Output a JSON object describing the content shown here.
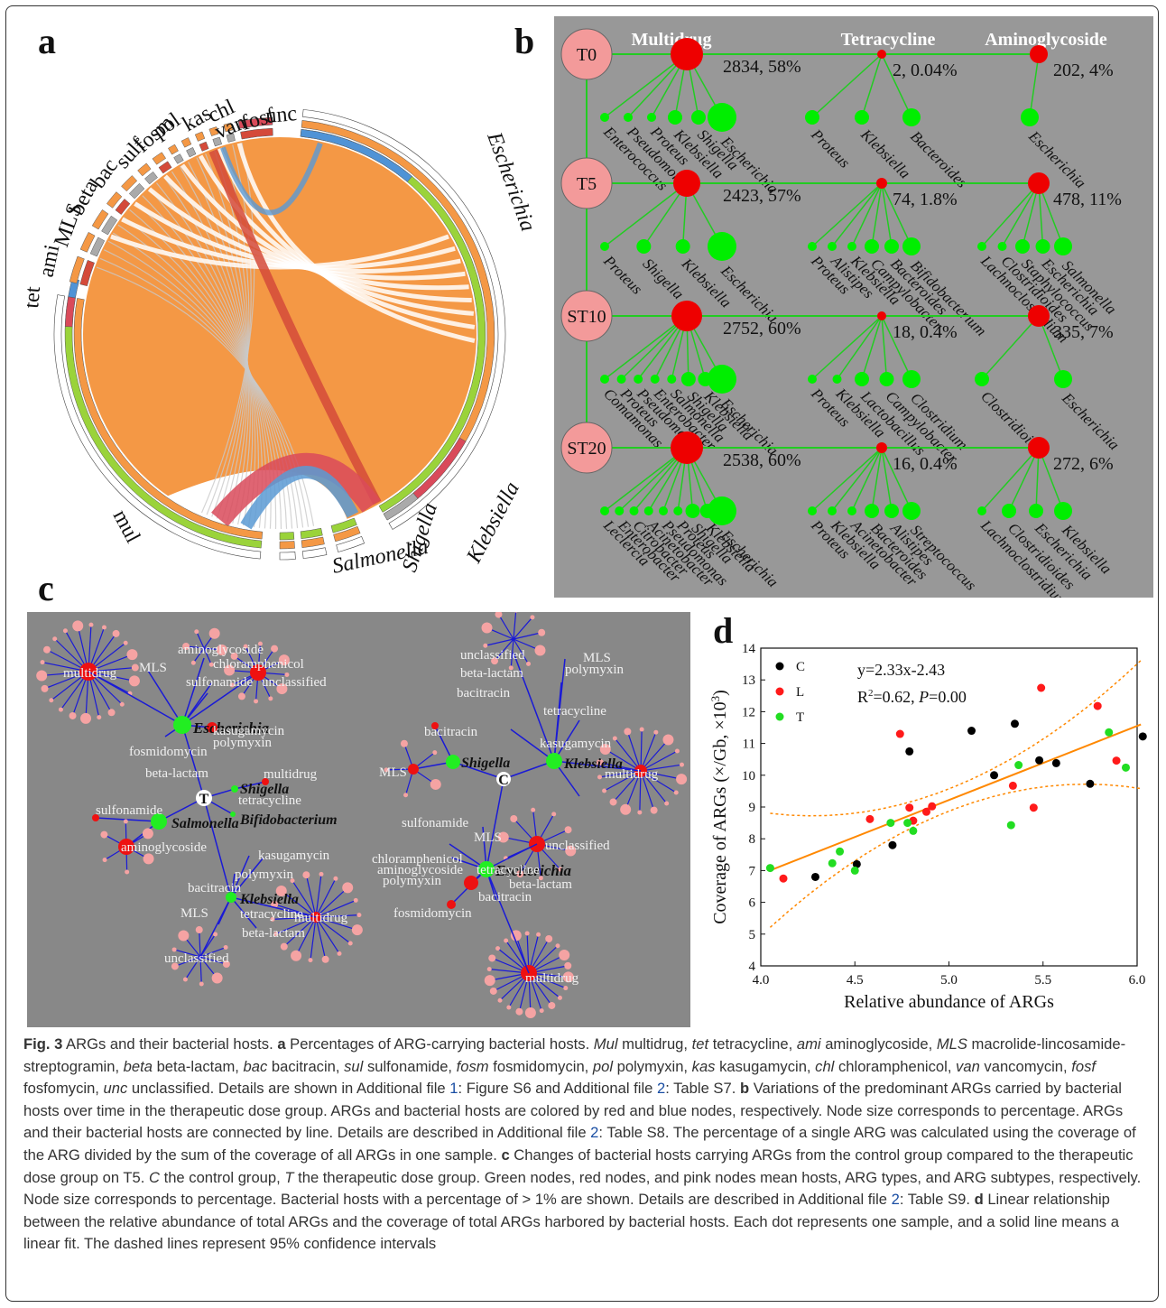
{
  "panels": {
    "a": "a",
    "b": "b",
    "c": "c",
    "d": "d"
  },
  "panel_a": {
    "arg_labels": [
      "tet",
      "ami",
      "MLS",
      "beta",
      "bac",
      "sulf",
      "fosm",
      "pol",
      "kas",
      "chl",
      "van",
      "fosf",
      "unc",
      "mul"
    ],
    "host_labels": [
      "Escherichia",
      "Klebsiella",
      "Shigella",
      "Salmonella"
    ]
  },
  "panel_b": {
    "columns": [
      "Multidrug",
      "Tetracycline",
      "Aminoglycoside"
    ],
    "rows": [
      {
        "time": "T0",
        "multi": "2834, 58%",
        "tet": "2, 0.04%",
        "ami": "202, 4%",
        "multi_hosts": [
          "Enterococcus",
          "Pseudomonas",
          "Proteus",
          "Klebsiella",
          "Shigella",
          "Escherichia"
        ],
        "tet_hosts": [
          "Proteus",
          "Klebsiella",
          "Bacteroides"
        ],
        "ami_hosts": [
          "Escherichia"
        ]
      },
      {
        "time": "T5",
        "multi": "2423, 57%",
        "tet": "74, 1.8%",
        "ami": "478, 11%",
        "multi_hosts": [
          "Proteus",
          "Shigella",
          "Klebsiella",
          "Escherichia"
        ],
        "tet_hosts": [
          "Proteus",
          "Alistipes",
          "Klebsiella",
          "Campylobacter",
          "Bacteroides",
          "Bifidobacterium"
        ],
        "ami_hosts": [
          "Lachnoclostridium",
          "Clostridioides",
          "Staphylococcus",
          "Escherichia",
          "Salmonella"
        ]
      },
      {
        "time": "ST10",
        "multi": "2752, 60%",
        "tet": "18, 0.4%",
        "ami": "335, 7%",
        "multi_hosts": [
          "Comamonas",
          "Proteus",
          "Pseudomonas",
          "Enterobacter",
          "Salmonella",
          "Shigella",
          "Klebsiella",
          "Escherichia"
        ],
        "tet_hosts": [
          "Proteus",
          "Klebsiella",
          "Lactobacillus",
          "Campylobacter",
          "Clostridium"
        ],
        "ami_hosts": [
          "Clostridioides",
          "Escherichia"
        ]
      },
      {
        "time": "ST20",
        "multi": "2538, 60%",
        "tet": "16, 0.4%",
        "ami": "272, 6%",
        "multi_hosts": [
          "Leclercia",
          "Enterobacter",
          "Citrobacter",
          "Acinetobacter",
          "Pseudomonas",
          "Proteus",
          "Shigella",
          "Klebsiella",
          "Escherichia"
        ],
        "tet_hosts": [
          "Proteus",
          "Klebsiella",
          "Acinetobacter",
          "Bacteroides",
          "Alistipes",
          "Streptococcus"
        ],
        "ami_hosts": [
          "Lachnoclostridium",
          "Clostridioides",
          "Escherichia",
          "Klebsiella"
        ]
      }
    ]
  },
  "panel_c": {
    "group_T": "T",
    "group_C": "C",
    "hosts_T": [
      "Escherichia",
      "Shigella",
      "Salmonella",
      "Bifidobacterium",
      "Klebsiella"
    ],
    "hosts_C": [
      "Klebsiella",
      "Shigella",
      "Escherichia"
    ],
    "types": [
      "multidrug",
      "aminoglycoside",
      "MLS",
      "chloramphenicol",
      "sulfonamide",
      "unclassified",
      "fosmidomycin",
      "kasugamycin",
      "polymyxin",
      "beta-lactam",
      "bacitracin",
      "tetracycline"
    ]
  },
  "chart_data": {
    "type": "scatter",
    "title": "",
    "xlabel": "Relative abundance of ARGs",
    "ylabel_main": "Coverage of ARGs (×/Gb, ×10",
    "ylabel_sup": "3",
    "ylabel_end": ")",
    "xlim": [
      4.0,
      6.0
    ],
    "ylim": [
      4,
      14
    ],
    "xticks": [
      "4.0",
      "4.5",
      "5.0",
      "5.5",
      "6.0"
    ],
    "yticks": [
      "4",
      "5",
      "6",
      "7",
      "8",
      "9",
      "10",
      "11",
      "12",
      "13",
      "14"
    ],
    "equation": "y=2.33x-2.43",
    "r2_prefix": "R",
    "r2_sup": "2",
    "r2_suffix": "=0.62, ",
    "p_label": "P",
    "p_value": "=0.00",
    "fit": {
      "slope": 2.33,
      "intercept": -2.43,
      "x_range": [
        4.05,
        6.02
      ]
    },
    "colors": {
      "C": "#000000",
      "L": "#ff1a1a",
      "T": "#22dd22",
      "fit": "#ff8800"
    },
    "series": [
      {
        "name": "C",
        "points": [
          [
            4.29,
            6.8
          ],
          [
            4.51,
            7.2
          ],
          [
            4.7,
            7.8
          ],
          [
            4.79,
            10.75
          ],
          [
            5.12,
            11.4
          ],
          [
            5.24,
            10.0
          ],
          [
            5.35,
            11.62
          ],
          [
            5.48,
            10.47
          ],
          [
            5.57,
            10.38
          ],
          [
            5.75,
            9.73
          ],
          [
            6.03,
            11.22
          ]
        ]
      },
      {
        "name": "L",
        "points": [
          [
            4.12,
            6.75
          ],
          [
            4.58,
            8.62
          ],
          [
            4.74,
            11.3
          ],
          [
            4.79,
            8.98
          ],
          [
            4.81,
            8.57
          ],
          [
            4.88,
            8.85
          ],
          [
            4.91,
            9.02
          ],
          [
            5.34,
            9.67
          ],
          [
            5.45,
            8.98
          ],
          [
            5.49,
            12.75
          ],
          [
            5.79,
            12.18
          ],
          [
            5.89,
            10.46
          ]
        ]
      },
      {
        "name": "T",
        "points": [
          [
            4.05,
            7.08
          ],
          [
            4.38,
            7.23
          ],
          [
            4.42,
            7.6
          ],
          [
            4.5,
            7.0
          ],
          [
            4.69,
            8.5
          ],
          [
            4.78,
            8.5
          ],
          [
            4.81,
            8.25
          ],
          [
            5.33,
            8.43
          ],
          [
            5.37,
            10.32
          ],
          [
            5.85,
            11.35
          ],
          [
            5.94,
            10.24
          ]
        ]
      }
    ]
  },
  "caption": {
    "fig_label": "Fig. 3",
    "title": " ARGs and their bacterial hosts. ",
    "a_bold": "a",
    "a_text1": " Percentages of ARG-carrying bacterial hosts. ",
    "abbrev": [
      [
        "Mul",
        " multidrug, "
      ],
      [
        "tet",
        " tetracycline, "
      ],
      [
        "ami",
        " aminoglycoside, "
      ],
      [
        "MLS",
        " macrolide-lincosamide-streptogramin, "
      ],
      [
        "beta",
        " beta-lactam, "
      ],
      [
        "bac",
        " bacitracin, "
      ],
      [
        "sul",
        " sulfonamide, "
      ],
      [
        "fosm",
        " fosmidomycin, "
      ],
      [
        "pol",
        " polymyxin, "
      ],
      [
        "kas",
        " kasugamycin, "
      ],
      [
        "chl",
        " chloramphenicol, "
      ],
      [
        "van",
        " vancomycin, "
      ],
      [
        "fosf",
        " fosfomycin, "
      ],
      [
        "unc",
        " unclassified. "
      ]
    ],
    "a_text2": "Details are shown in Additional file ",
    "link1": "1",
    "a_text3": ": Figure S6 and Additional file ",
    "link2": "2",
    "a_text4": ": Table S7. ",
    "b_bold": "b",
    "b_text1": " Variations of the predominant ARGs carried by bacterial hosts over time in the therapeutic dose group. ARGs and bacterial hosts are colored by red and blue nodes, respectively. Node size corresponds to percentage. ARGs and their bacterial hosts are connected by line. Details are described in Additional file ",
    "link3": "2",
    "b_text2": ": Table S8. The percentage of a single ARG was calculated using the coverage of the ARG divided by the sum of the coverage of all ARGs in one sample. ",
    "c_bold": "c",
    "c_text1": " Changes of bacterial hosts carrying ARGs from the control group compared to the therapeutic dose group on T5. ",
    "c_C": "C",
    "c_text2": " the control group, ",
    "c_T": "T",
    "c_text3": " the therapeutic dose group. Green nodes, red nodes, and pink nodes mean hosts, ARG types, and ARG subtypes, respectively. Node size corresponds to percentage. Bacterial hosts with a percentage of > 1% are shown. Details are described in Additional file ",
    "link4": "2",
    "c_text4": ": Table S9. ",
    "d_bold": "d",
    "d_text": " Linear relationship between the relative abundance of total ARGs and the coverage of total ARGs harbored by bacterial hosts. Each dot represents one sample, and a solid line means a linear fit. The dashed lines represent 95% confidence intervals"
  }
}
